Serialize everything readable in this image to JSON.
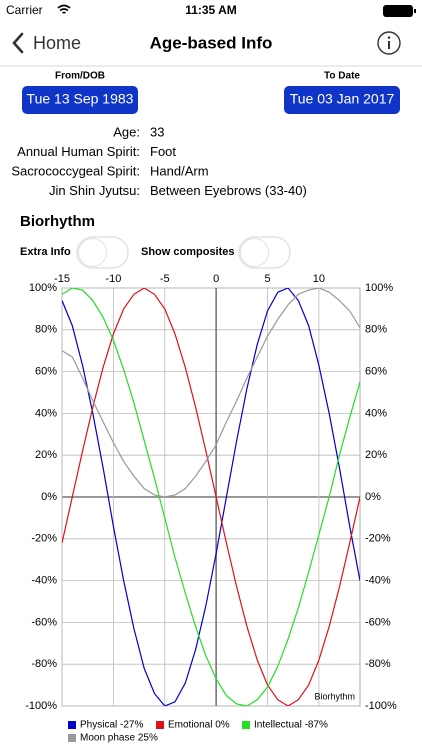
{
  "status_bar": {
    "carrier": "Carrier",
    "time": "11:35 AM"
  },
  "nav": {
    "back": "Home",
    "title": "Age-based Info"
  },
  "dates": {
    "from_label": "From/DOB",
    "from": "Tue 13 Sep 1983",
    "to_label": "To Date",
    "to": "Tue 03 Jan 2017"
  },
  "info": [
    {
      "label": "Age:",
      "value": "33"
    },
    {
      "label": "Annual Human Spirit:",
      "value": "Foot"
    },
    {
      "label": "Sacrococcygeal Spirit:",
      "value": "Hand/Arm"
    },
    {
      "label": "Jin Shin Jyutsu:",
      "value": "Between Eyebrows (33-40)"
    }
  ],
  "section_title": "Biorhythm",
  "toggles": [
    {
      "label": "Extra Info",
      "on": false
    },
    {
      "label": "Show composites",
      "on": false
    }
  ],
  "chart_data": {
    "type": "line",
    "annotation": "Biorhythm",
    "x": [
      -15,
      -14,
      -13,
      -12,
      -11,
      -10,
      -9,
      -8,
      -7,
      -6,
      -5,
      -4,
      -3,
      -2,
      -1,
      0,
      1,
      2,
      3,
      4,
      5,
      6,
      7,
      8,
      9,
      10,
      11,
      12,
      13,
      14
    ],
    "xlim": [
      -15,
      14
    ],
    "xticks": [
      -15,
      -10,
      -5,
      0,
      5,
      10
    ],
    "ylim": [
      -100,
      100
    ],
    "yticks": [
      {
        "value": -100,
        "label": "-100%"
      },
      {
        "value": -80,
        "label": "-80%"
      },
      {
        "value": -60,
        "label": "-60%"
      },
      {
        "value": -40,
        "label": "-40%"
      },
      {
        "value": -20,
        "label": "-20%"
      },
      {
        "value": 0,
        "label": "0%"
      },
      {
        "value": 20,
        "label": "20%"
      },
      {
        "value": 40,
        "label": "40%"
      },
      {
        "value": 60,
        "label": "60%"
      },
      {
        "value": 80,
        "label": "80%"
      },
      {
        "value": 100,
        "label": "100%"
      }
    ],
    "grid": true,
    "series": [
      {
        "name": "Physical -27%",
        "color": "#0000cc",
        "values": [
          94,
          82,
          63,
          40,
          14,
          -14,
          -40,
          -63,
          -82,
          -94,
          -100,
          -98,
          -89,
          -73,
          -52,
          -27,
          0,
          27,
          52,
          73,
          89,
          98,
          100,
          94,
          82,
          63,
          40,
          14,
          -14,
          -40
        ]
      },
      {
        "name": "Emotional 0%",
        "color": "#e0101a",
        "values": [
          -22,
          0,
          22,
          43,
          62,
          78,
          90,
          97,
          100,
          97,
          90,
          78,
          62,
          43,
          22,
          0,
          -22,
          -43,
          -62,
          -78,
          -90,
          -97,
          -100,
          -97,
          -90,
          -78,
          -62,
          -43,
          -22,
          0
        ]
      },
      {
        "name": "Intellectual -87%",
        "color": "#22e022",
        "values": [
          97,
          100,
          99,
          94,
          86,
          75,
          61,
          45,
          27,
          9,
          -10,
          -29,
          -46,
          -62,
          -76,
          -87,
          -95,
          -99,
          -100,
          -97,
          -91,
          -81,
          -68,
          -53,
          -36,
          -18,
          0,
          20,
          38,
          55
        ]
      },
      {
        "name": "Moon phase 25%",
        "color": "#999999",
        "values": [
          70,
          67,
          57,
          46,
          36,
          26,
          17,
          10,
          4,
          1,
          0,
          1,
          4,
          10,
          17,
          25,
          36,
          46,
          57,
          67,
          77,
          85,
          92,
          97,
          99,
          100,
          98,
          94,
          89,
          81
        ]
      }
    ]
  }
}
